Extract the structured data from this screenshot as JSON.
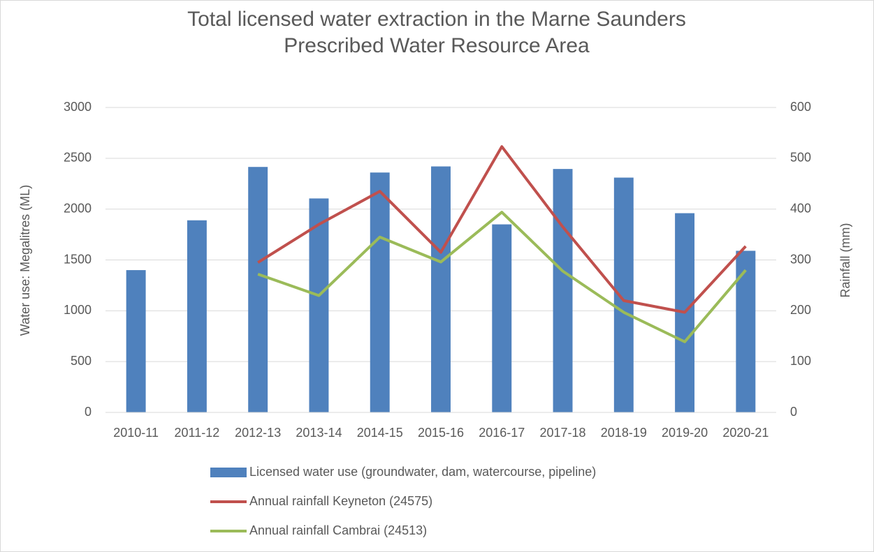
{
  "chart_data": {
    "type": "bar",
    "title": "Total licensed water extraction in the Marne Saunders Prescribed Water Resource Area",
    "ylabel": "Water use: Megalitres (ML)",
    "y2label": "Rainfall (mm)",
    "categories": [
      "2010-11",
      "2011-12",
      "2012-13",
      "2013-14",
      "2014-15",
      "2015-16",
      "2016-17",
      "2017-18",
      "2018-19",
      "2019-20",
      "2020-21"
    ],
    "series": [
      {
        "name": "Licensed water use (groundwater, dam, watercourse, pipeline)",
        "type": "bar",
        "color": "#4f81bd",
        "values": [
          1400,
          1890,
          2415,
          2105,
          2360,
          2420,
          1850,
          2395,
          2310,
          1960,
          1590
        ]
      },
      {
        "name": "Annual rainfall Keyneton (24575)",
        "type": "line",
        "axis": "y2",
        "color": "#c0504d",
        "values": [
          null,
          null,
          295,
          370,
          435,
          315,
          523,
          365,
          220,
          197,
          327
        ]
      },
      {
        "name": "Annual rainfall Cambrai (24513)",
        "type": "line",
        "axis": "y2",
        "color": "#9bbb59",
        "values": [
          null,
          null,
          272,
          230,
          345,
          296,
          394,
          278,
          197,
          139,
          280
        ]
      }
    ],
    "ylim": [
      0,
      3000
    ],
    "yticks": [
      0,
      500,
      1000,
      1500,
      2000,
      2500,
      3000
    ],
    "y2lim": [
      0,
      600
    ],
    "y2ticks": [
      0,
      100,
      200,
      300,
      400,
      500,
      600
    ],
    "grid": true,
    "legend": "bottom"
  }
}
